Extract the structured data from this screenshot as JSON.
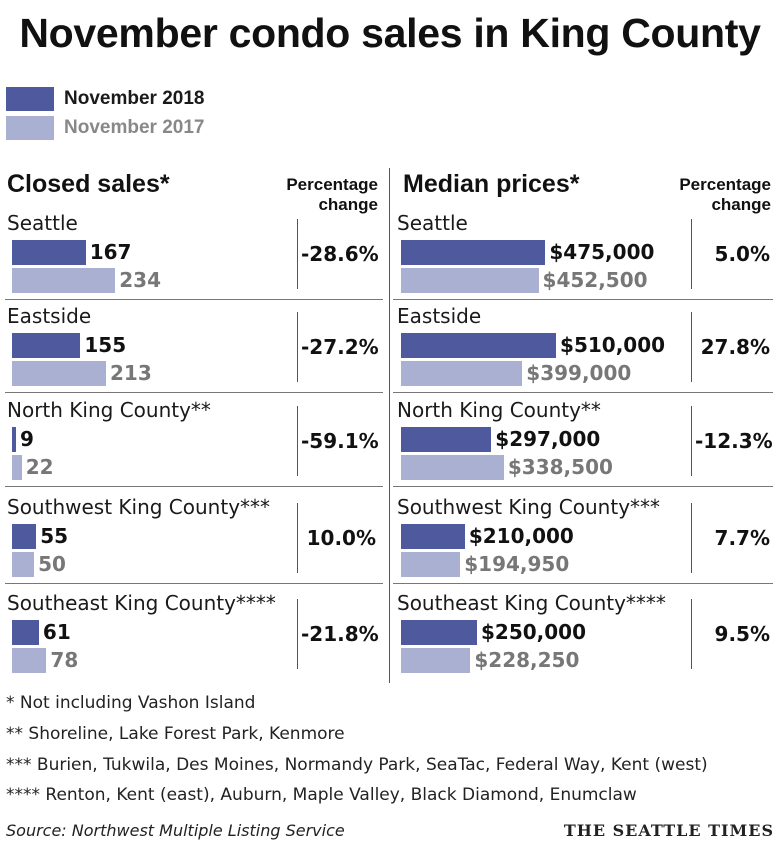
{
  "title": "November condo sales in King County",
  "legend": [
    {
      "label": "November 2018",
      "color": "#4e5a9d"
    },
    {
      "label": "November 2017",
      "color": "#a9b0d2"
    }
  ],
  "chart_data": [
    {
      "type": "bar",
      "title": "Closed sales*",
      "pct_header": [
        "Percentage",
        "change"
      ],
      "categories": [
        "Seattle",
        "Eastside",
        "North King County**",
        "Southwest King County***",
        "Southeast King County****"
      ],
      "series": [
        {
          "name": "November 2018",
          "values": [
            167,
            155,
            9,
            55,
            61
          ],
          "labels": [
            "167",
            "155",
            "9",
            "55",
            "61"
          ]
        },
        {
          "name": "November 2017",
          "values": [
            234,
            213,
            22,
            50,
            78
          ],
          "labels": [
            "234",
            "213",
            "22",
            "50",
            "78"
          ]
        }
      ],
      "pct_change": [
        "-28.6%",
        "-27.2%",
        "-59.1%",
        "10.0%",
        "-21.8%"
      ]
    },
    {
      "type": "bar",
      "title": "Median prices*",
      "pct_header": [
        "Percentage",
        "change"
      ],
      "categories": [
        "Seattle",
        "Eastside",
        "North King County**",
        "Southwest King County***",
        "Southeast King County****"
      ],
      "series": [
        {
          "name": "November 2018",
          "values": [
            475000,
            510000,
            297000,
            210000,
            250000
          ],
          "labels": [
            "$475,000",
            "$510,000",
            "$297,000",
            "$210,000",
            "$250,000"
          ]
        },
        {
          "name": "November 2017",
          "values": [
            452500,
            399000,
            338500,
            194950,
            228250
          ],
          "labels": [
            "$452,500",
            "$399,000",
            "$338,500",
            "$194,950",
            "$228,250"
          ]
        }
      ],
      "pct_change": [
        "5.0%",
        "27.8%",
        "-12.3%",
        "7.7%",
        "9.5%"
      ]
    }
  ],
  "footnotes": [
    "* Not including Vashon Island",
    "**  Shoreline, Lake Forest Park, Kenmore",
    "*** Burien, Tukwila, Des Moines, Normandy Park, SeaTac, Federal Way, Kent (west)",
    "**** Renton, Kent (east), Auburn, Maple Valley, Black Diamond, Enumclaw"
  ],
  "source": "Source: Northwest Multiple Listing Service",
  "credit": "THE SEATTLE TIMES"
}
